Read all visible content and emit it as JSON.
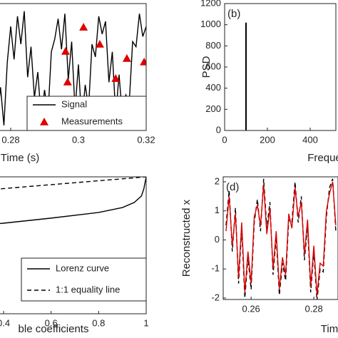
{
  "chart_data": [
    {
      "type": "line",
      "xlabel": "Time (s)",
      "xlim": [
        0.27,
        0.32
      ],
      "xticks": [
        0.28,
        0.3,
        0.32
      ],
      "ylim": [
        -2.5,
        2.5
      ],
      "legend": "lower right",
      "series": [
        {
          "name": "Signal",
          "color": "#000000",
          "x": [
            0.27,
            0.271,
            0.272,
            0.273,
            0.274,
            0.275,
            0.276,
            0.277,
            0.278,
            0.279,
            0.28,
            0.281,
            0.282,
            0.283,
            0.284,
            0.285,
            0.286,
            0.287,
            0.288,
            0.289,
            0.29,
            0.291,
            0.292,
            0.293,
            0.294,
            0.295,
            0.296,
            0.297,
            0.298,
            0.299,
            0.3,
            0.301,
            0.302,
            0.303,
            0.304,
            0.305,
            0.306,
            0.307,
            0.308,
            0.309,
            0.31,
            0.311,
            0.312,
            0.313,
            0.314,
            0.315,
            0.316,
            0.317,
            0.318,
            0.319,
            0.32
          ],
          "values": [
            0.5,
            1.8,
            -0.3,
            1.2,
            -1.5,
            0.4,
            -2.1,
            -0.8,
            -2.3,
            0.2,
            1.6,
            0.3,
            2.0,
            0.9,
            2.2,
            -0.4,
            0.8,
            -1.2,
            -0.2,
            -2.0,
            -0.9,
            -1.9,
            0.6,
            1.1,
            1.9,
            0.7,
            2.1,
            -0.5,
            1.0,
            -1.7,
            0.1,
            -2.2,
            -0.7,
            -1.6,
            0.9,
            0.4,
            2.0,
            1.3,
            1.8,
            -0.6,
            0.6,
            -1.9,
            -0.3,
            -2.0,
            -1.1,
            -1.4,
            1.0,
            0.8,
            2.1,
            1.2,
            1.6
          ]
        }
      ],
      "scatter": {
        "name": "Measurements",
        "color": "#dd0000",
        "x": [
          0.2962,
          0.2968,
          0.3015,
          0.3063,
          0.311,
          0.3143,
          0.3194
        ],
        "values": [
          0.62,
          -0.59,
          1.57,
          0.9,
          -0.45,
          0.34,
          0.2
        ]
      }
    },
    {
      "type": "bar",
      "label": "(b)",
      "ylabel": "PSD",
      "xlabel": "Freque",
      "x": [
        100
      ],
      "values": [
        1020
      ],
      "color": "#000000",
      "xlim": [
        0,
        520
      ],
      "xticks": [
        0,
        200,
        400
      ],
      "ylim": [
        0,
        1200
      ],
      "yticks": [
        0,
        200,
        400,
        600,
        800,
        1000,
        1200
      ]
    },
    {
      "type": "line",
      "xlabel": "ble coefficients",
      "xlim": [
        0,
        1
      ],
      "xticks": [
        0.4,
        0.6,
        0.8,
        1
      ],
      "ylim": [
        -6,
        1
      ],
      "legend": "lower right",
      "series": [
        {
          "name": "Lorenz curve",
          "color": "#000000",
          "x": [
            0.3,
            0.4,
            0.6,
            0.8,
            0.9,
            0.95,
            0.98,
            0.99,
            1
          ],
          "values": [
            -1.48,
            -1.37,
            -1.11,
            -0.82,
            -0.57,
            -0.31,
            0.02,
            0.38,
            1
          ]
        },
        {
          "name": "1:1 equality line",
          "color": "#000000",
          "dash": true,
          "x": [
            0,
            1
          ],
          "values": [
            0,
            1
          ]
        }
      ]
    },
    {
      "type": "line",
      "label": "(d)",
      "ylabel": "Reconstructed x",
      "xlabel": "Tim",
      "xlim": [
        0.2511,
        0.2877
      ],
      "xticks": [
        0.26,
        0.28
      ],
      "ylim": [
        -2.05,
        2.17
      ],
      "yticks": [
        -2,
        -1,
        0,
        1,
        2
      ],
      "series": [
        {
          "color": "#000000",
          "dash": true,
          "x": [
            0.252,
            0.253,
            0.254,
            0.255,
            0.256,
            0.257,
            0.258,
            0.259,
            0.26,
            0.261,
            0.262,
            0.263,
            0.264,
            0.265,
            0.266,
            0.267,
            0.268,
            0.269,
            0.27,
            0.271,
            0.272,
            0.273,
            0.274,
            0.275,
            0.276,
            0.277,
            0.278,
            0.279,
            0.28,
            0.281,
            0.282,
            0.283,
            0.284,
            0.285,
            0.286,
            0.287
          ],
          "values": [
            0.5,
            1.7,
            -0.4,
            1.1,
            -1.5,
            0.4,
            -2.0,
            -0.6,
            -1.7,
            0.6,
            1.4,
            0.3,
            2.1,
            0.4,
            1.3,
            -1.2,
            0.1,
            -1.9,
            -0.8,
            -1.4,
            0.7,
            0.6,
            2.0,
            0.6,
            1.5,
            -0.7,
            0.5,
            -1.8,
            -0.4,
            -2.1,
            -1.0,
            -1.1,
            0.8,
            1.8,
            2.1,
            0.3
          ]
        },
        {
          "color": "#dd0000",
          "x": [
            0.252,
            0.253,
            0.254,
            0.255,
            0.256,
            0.257,
            0.258,
            0.259,
            0.26,
            0.261,
            0.262,
            0.263,
            0.264,
            0.265,
            0.266,
            0.267,
            0.268,
            0.269,
            0.27,
            0.271,
            0.272,
            0.273,
            0.274,
            0.275,
            0.276,
            0.277,
            0.278,
            0.279,
            0.28,
            0.281,
            0.282,
            0.283,
            0.284,
            0.285,
            0.286,
            0.287
          ],
          "values": [
            0.3,
            1.5,
            -0.2,
            0.9,
            -1.3,
            0.6,
            -1.8,
            -0.4,
            -1.5,
            0.8,
            1.2,
            0.5,
            1.9,
            0.2,
            1.1,
            -1.0,
            0.3,
            -1.7,
            -0.6,
            -1.2,
            0.9,
            0.4,
            1.8,
            0.8,
            1.3,
            -0.5,
            0.7,
            -1.6,
            -0.2,
            -1.9,
            -0.8,
            -0.9,
            1.0,
            1.6,
            2.0,
            0.5
          ]
        }
      ]
    }
  ]
}
